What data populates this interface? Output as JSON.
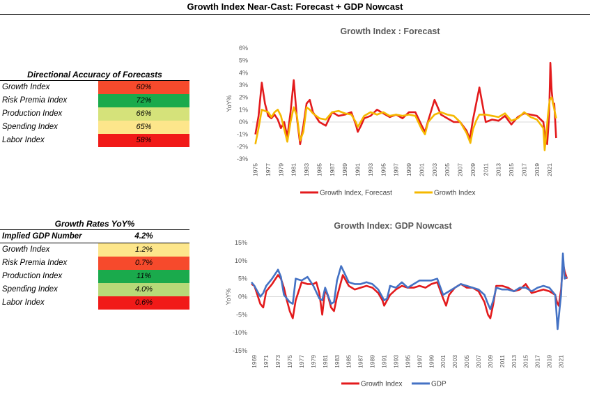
{
  "page": {
    "title": "Growth Index Near-Cast: Forecast + GDP Nowcast"
  },
  "accuracy_table": {
    "title": "Directional Accuracy of Forecasts",
    "rows": [
      {
        "label": "Growth Index",
        "value": "60%",
        "color": "#f64a2c"
      },
      {
        "label": "Risk Premia Index",
        "value": "72%",
        "color": "#1aaa4c"
      },
      {
        "label": "Production Index",
        "value": "66%",
        "color": "#d5e27a"
      },
      {
        "label": "Spending Index",
        "value": "65%",
        "color": "#fde68b"
      },
      {
        "label": "Labor Index",
        "value": "58%",
        "color": "#f11a18"
      }
    ]
  },
  "growth_table": {
    "title": "Growth Rates YoY%",
    "header": {
      "label": "Implied GDP Number",
      "value": "4.2%"
    },
    "rows": [
      {
        "label": "Growth Index",
        "value": "1.2%",
        "color": "#fde68b"
      },
      {
        "label": "Risk Premia Index",
        "value": "0.7%",
        "color": "#f64a2c"
      },
      {
        "label": "Production Index",
        "value": "11%",
        "color": "#1aaa4c"
      },
      {
        "label": "Spending Index",
        "value": "4.0%",
        "color": "#b7d978"
      },
      {
        "label": "Labor Index",
        "value": "0.6%",
        "color": "#f11a18"
      }
    ]
  },
  "chart_data": [
    {
      "type": "line",
      "title": "Growth Index : Forecast",
      "ylabel": "YoY%",
      "ylim": [
        -3,
        6
      ],
      "yticks": [
        "-3%",
        "-2%",
        "-1%",
        "0%",
        "1%",
        "2%",
        "3%",
        "4%",
        "5%",
        "6%"
      ],
      "xlim": [
        1974.5,
        2022.5
      ],
      "xticks": [
        "1975",
        "1977",
        "1979",
        "1981",
        "1983",
        "1985",
        "1987",
        "1989",
        "1991",
        "1993",
        "1995",
        "1997",
        "1999",
        "2001",
        "2003",
        "2005",
        "2007",
        "2009",
        "2011",
        "2013",
        "2015",
        "2017",
        "2019",
        "2021"
      ],
      "series": [
        {
          "name": "Growth Index, Forecast",
          "color": "#e31a1c",
          "x": [
            1975,
            1975.5,
            1976,
            1976.5,
            1977,
            1977.5,
            1978,
            1978.5,
            1979,
            1979.5,
            1980,
            1980.5,
            1981,
            1981.5,
            1982,
            1982.5,
            1983,
            1983.5,
            1984,
            1985,
            1986,
            1987,
            1988,
            1989,
            1990,
            1990.7,
            1991,
            1991.5,
            1992,
            1993,
            1994,
            1995,
            1996,
            1997,
            1998,
            1999,
            2000,
            2001,
            2001.5,
            2002,
            2003,
            2004,
            2005,
            2006,
            2007,
            2008,
            2008.5,
            2009,
            2010,
            2011,
            2012,
            2013,
            2014,
            2015,
            2016,
            2017,
            2018,
            2019,
            2020,
            2020.3,
            2020.6,
            2020.9,
            2021.1,
            2021.3,
            2021.5,
            2021.7,
            2022
          ],
          "y": [
            -1.0,
            0.5,
            3.2,
            1.5,
            0.5,
            0.3,
            0.6,
            0.2,
            -0.5,
            0.0,
            -1.2,
            0.8,
            3.4,
            0.3,
            -1.8,
            -0.3,
            1.5,
            1.8,
            0.8,
            0.0,
            -0.3,
            0.8,
            0.5,
            0.6,
            0.8,
            -0.2,
            -0.8,
            -0.3,
            0.3,
            0.5,
            1.0,
            0.7,
            0.4,
            0.6,
            0.3,
            0.8,
            0.8,
            -0.3,
            -0.8,
            0.1,
            1.8,
            0.6,
            0.3,
            0.0,
            0.0,
            -0.7,
            -1.4,
            0.2,
            2.8,
            0.0,
            0.2,
            0.1,
            0.5,
            -0.2,
            0.4,
            0.7,
            0.6,
            0.5,
            0.0,
            -1.2,
            -1.8,
            0.5,
            4.8,
            2.5,
            1.5,
            1.5,
            -1.3
          ]
        },
        {
          "name": "Growth Index",
          "color": "#f5b800",
          "x": [
            1975,
            1975.5,
            1976,
            1977,
            1977.5,
            1978,
            1978.5,
            1979,
            1980,
            1980.5,
            1981,
            1981.5,
            1982,
            1982.5,
            1983,
            1983.5,
            1984,
            1985,
            1986,
            1987,
            1988,
            1989,
            1990,
            1990.7,
            1991,
            1992,
            1993,
            1994,
            1995,
            1996,
            1997,
            1998,
            1999,
            2000,
            2001,
            2001.5,
            2002,
            2003,
            2004,
            2005,
            2006,
            2007,
            2008,
            2008.6,
            2009,
            2009.5,
            2010,
            2011,
            2012,
            2013,
            2014,
            2015,
            2016,
            2017,
            2018,
            2019,
            2020,
            2020.2,
            2020.4,
            2020.7,
            2021,
            2021.3,
            2021.6,
            2022
          ],
          "y": [
            -1.8,
            -0.5,
            1.0,
            0.8,
            0.4,
            0.8,
            1.0,
            0.5,
            -1.6,
            0.0,
            1.2,
            0.5,
            -1.5,
            -0.8,
            1.2,
            1.0,
            0.7,
            0.3,
            0.2,
            0.8,
            0.9,
            0.7,
            0.6,
            0.0,
            -0.4,
            0.5,
            0.8,
            0.6,
            0.8,
            0.5,
            0.6,
            0.5,
            0.6,
            0.5,
            -0.6,
            -1.0,
            0.0,
            0.6,
            0.8,
            0.6,
            0.5,
            0.0,
            -0.9,
            -1.7,
            -0.6,
            0.1,
            0.6,
            0.6,
            0.5,
            0.4,
            0.7,
            0.1,
            0.3,
            0.8,
            0.4,
            0.2,
            -0.5,
            -2.3,
            -1.3,
            0.5,
            1.8,
            2.0,
            1.3,
            0.3
          ]
        }
      ],
      "legend": "bottom"
    },
    {
      "type": "line",
      "title": "Growth Index: GDP Nowcast",
      "ylabel": "YoY%",
      "ylim": [
        -15,
        15
      ],
      "yticks": [
        "-15%",
        "-10%",
        "-5%",
        "0%",
        "5%",
        "10%",
        "15%"
      ],
      "xlim": [
        1968.5,
        2022
      ],
      "xticks": [
        "1969",
        "1971",
        "1973",
        "1975",
        "1977",
        "1979",
        "1981",
        "1983",
        "1985",
        "1987",
        "1989",
        "1991",
        "1993",
        "1995",
        "1997",
        "1999",
        "2001",
        "2003",
        "2005",
        "2007",
        "2009",
        "2011",
        "2013",
        "2015",
        "2017",
        "2019",
        "2021"
      ],
      "series": [
        {
          "name": "Growth Index",
          "color": "#e31a1c",
          "x": [
            1968.5,
            1969,
            1969.5,
            1970,
            1970.5,
            1971,
            1972,
            1973,
            1973.5,
            1974,
            1974.5,
            1975,
            1975.5,
            1976,
            1977,
            1978,
            1979,
            1979.5,
            1980,
            1980.5,
            1981,
            1981.5,
            1982,
            1982.5,
            1983,
            1984,
            1985,
            1986,
            1987,
            1988,
            1989,
            1990,
            1990.7,
            1991,
            1992,
            1993,
            1994,
            1995,
            1996,
            1997,
            1998,
            1999,
            2000,
            2001,
            2001.5,
            2002,
            2003,
            2004,
            2005,
            2006,
            2007,
            2008,
            2008.6,
            2009,
            2009.5,
            2010,
            2011,
            2012,
            2013,
            2014,
            2015,
            2016,
            2017,
            2018,
            2019,
            2020,
            2020.3,
            2020.6,
            2021,
            2021.3,
            2021.6,
            2022
          ],
          "y": [
            3.5,
            3.0,
            0.5,
            -2.0,
            -3.0,
            1.5,
            3.5,
            6.0,
            5.0,
            2.5,
            -1.0,
            -4.0,
            -6.0,
            -1.0,
            4.0,
            3.5,
            3.5,
            4.0,
            1.0,
            -5.0,
            2.0,
            0.0,
            -3.0,
            -4.0,
            0.0,
            6.0,
            3.0,
            2.0,
            2.5,
            3.0,
            2.5,
            1.0,
            -1.0,
            -2.5,
            0.5,
            2.0,
            3.0,
            2.5,
            2.5,
            3.0,
            2.5,
            3.5,
            4.0,
            -0.5,
            -2.5,
            0.5,
            2.5,
            3.5,
            2.5,
            2.5,
            1.5,
            -1.5,
            -5.0,
            -6.0,
            -2.0,
            3.0,
            3.0,
            2.5,
            1.5,
            2.0,
            3.5,
            1.0,
            1.5,
            2.0,
            1.5,
            0.5,
            -1.5,
            -2.5,
            2.0,
            9.5,
            7.0,
            5.0
          ]
        },
        {
          "name": "GDP",
          "color": "#4472c4",
          "x": [
            1968.5,
            1969,
            1970,
            1970.5,
            1971,
            1972,
            1973,
            1973.5,
            1974,
            1975,
            1975.5,
            1976,
            1977,
            1978,
            1979,
            1980,
            1980.5,
            1981,
            1982,
            1982.5,
            1983,
            1983.7,
            1984,
            1985,
            1986,
            1987,
            1988,
            1989,
            1990,
            1991,
            1991.5,
            1992,
            1993,
            1994,
            1995,
            1996,
            1997,
            1998,
            1999,
            2000,
            2001,
            2002,
            2003,
            2004,
            2005,
            2006,
            2007,
            2008,
            2008.6,
            2009,
            2009.5,
            2010,
            2011,
            2012,
            2013,
            2014,
            2015,
            2016,
            2017,
            2018,
            2019,
            2020,
            2020.4,
            2020.8,
            2021,
            2021.3,
            2021.6,
            2022
          ],
          "y": [
            4.0,
            3.0,
            0.0,
            1.0,
            3.0,
            5.0,
            7.5,
            5.5,
            0.5,
            -1.5,
            -2.0,
            5.0,
            4.5,
            5.5,
            3.0,
            -0.5,
            -1.0,
            2.5,
            -2.0,
            -1.5,
            4.5,
            8.5,
            7.5,
            4.0,
            3.5,
            3.5,
            4.0,
            3.5,
            2.0,
            -1.0,
            -0.5,
            3.0,
            2.5,
            4.0,
            2.5,
            3.5,
            4.5,
            4.5,
            4.5,
            5.0,
            0.5,
            1.5,
            2.5,
            3.5,
            3.0,
            2.5,
            2.0,
            0.5,
            -2.0,
            -3.5,
            -1.0,
            2.5,
            2.0,
            2.0,
            1.5,
            2.5,
            2.5,
            1.5,
            2.5,
            3.0,
            2.5,
            0.5,
            -9.0,
            -2.5,
            0.5,
            12.0,
            5.0,
            5.5
          ]
        }
      ],
      "legend": "bottom"
    }
  ]
}
